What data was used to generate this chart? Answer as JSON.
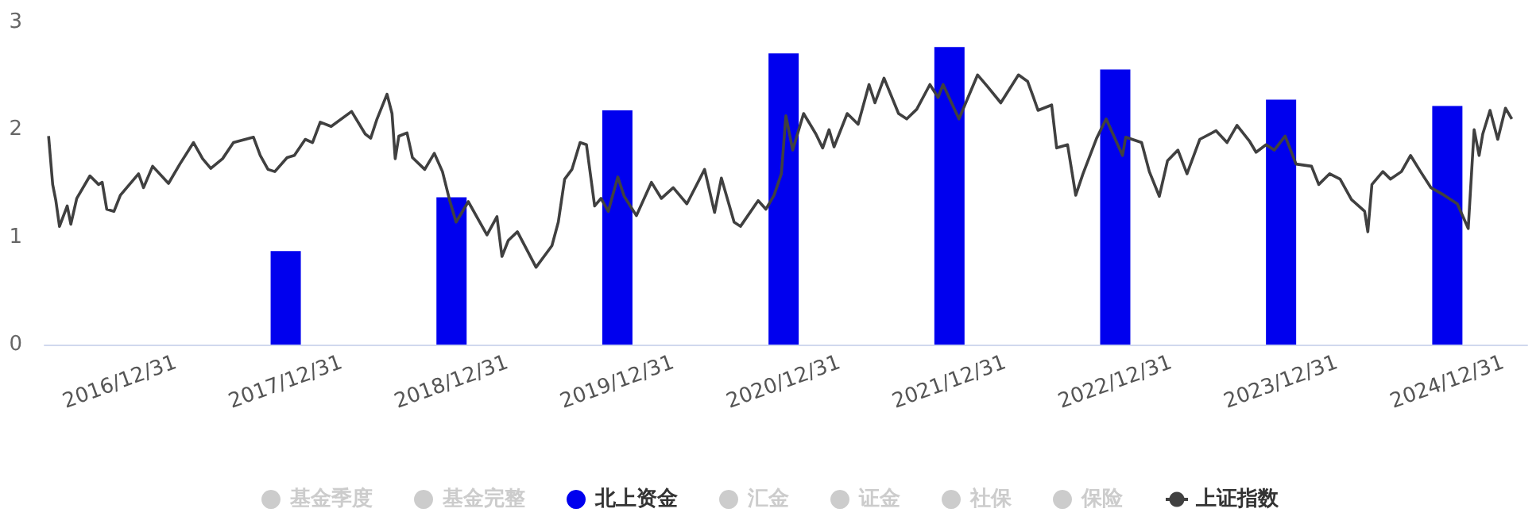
{
  "chart_data": {
    "type": "bar",
    "xlim": [
      "2016-07-18",
      "2025-06-25"
    ],
    "ylim": [
      0,
      3
    ],
    "yticks": [
      0,
      1,
      2,
      3
    ],
    "xticks": [
      {
        "value": "2016-12-31",
        "label": "2016/12/31"
      },
      {
        "value": "2017-12-31",
        "label": "2017/12/31"
      },
      {
        "value": "2018-12-31",
        "label": "2018/12/31"
      },
      {
        "value": "2019-12-31",
        "label": "2019/12/31"
      },
      {
        "value": "2020-12-31",
        "label": "2020/12/31"
      },
      {
        "value": "2021-12-31",
        "label": "2021/12/31"
      },
      {
        "value": "2022-12-31",
        "label": "2022/12/31"
      },
      {
        "value": "2023-12-31",
        "label": "2023/12/31"
      },
      {
        "value": "2024-12-31",
        "label": "2024/12/31"
      }
    ],
    "grid": false,
    "legend": "bottom",
    "series": [
      {
        "name": "基金季度",
        "color": "#cccccc"
      },
      {
        "name": "基金完整",
        "color": "#cccccc"
      },
      {
        "name": "北上资金",
        "color": "#0000ee",
        "x": [
          "2017-12-31",
          "2018-12-31",
          "2019-12-31",
          "2020-12-31",
          "2021-12-31",
          "2022-12-31",
          "2023-12-31",
          "2024-12-31"
        ],
        "values": [
          0.87,
          1.37,
          2.18,
          2.71,
          2.77,
          2.56,
          2.28,
          2.22
        ]
      },
      {
        "name": "汇金",
        "color": "#cccccc"
      },
      {
        "name": "证金",
        "color": "#cccccc"
      },
      {
        "name": "社保",
        "color": "#cccccc"
      },
      {
        "name": "保险",
        "color": "#cccccc"
      },
      {
        "name": "上证指数",
        "type": "line",
        "color": "#404040",
        "marker": "none",
        "x": [
          "2016-07-27",
          "2016-08-05",
          "2016-08-12",
          "2016-08-20",
          "2016-09-06",
          "2016-09-14",
          "2016-09-27",
          "2016-10-26",
          "2016-11-14",
          "2016-11-22",
          "2016-12-02",
          "2016-12-18",
          "2017-01-01",
          "2017-02-10",
          "2017-02-21",
          "2017-03-13",
          "2017-04-17",
          "2017-05-12",
          "2017-06-11",
          "2017-07-01",
          "2017-07-19",
          "2017-08-14",
          "2017-09-07",
          "2017-10-21",
          "2017-11-05",
          "2017-11-22",
          "2017-12-07",
          "2018-01-03",
          "2018-01-19",
          "2018-02-12",
          "2018-02-28",
          "2018-03-17",
          "2018-04-10",
          "2018-05-25",
          "2018-06-24",
          "2018-07-06",
          "2018-07-20",
          "2018-08-11",
          "2018-08-22",
          "2018-08-29",
          "2018-09-06",
          "2018-09-24",
          "2018-10-06",
          "2018-11-02",
          "2018-11-23",
          "2018-12-11",
          "2018-12-27",
          "2019-01-10",
          "2019-02-06",
          "2019-03-03",
          "2019-03-19",
          "2019-04-10",
          "2019-04-21",
          "2019-05-05",
          "2019-05-25",
          "2019-07-05",
          "2019-08-09",
          "2019-08-23",
          "2019-09-06",
          "2019-09-22",
          "2019-10-10",
          "2019-10-24",
          "2019-11-11",
          "2019-11-25",
          "2019-12-11",
          "2020-01-01",
          "2020-01-15",
          "2020-02-11",
          "2020-03-15",
          "2020-04-06",
          "2020-05-02",
          "2020-06-01",
          "2020-07-10",
          "2020-08-01",
          "2020-08-16",
          "2020-09-13",
          "2020-09-27",
          "2020-11-05",
          "2020-11-22",
          "2020-12-10",
          "2020-12-26",
          "2021-01-05",
          "2021-01-20",
          "2021-02-13",
          "2021-03-12",
          "2021-03-27",
          "2021-04-10",
          "2021-04-21",
          "2021-05-20",
          "2021-06-13",
          "2021-07-07",
          "2021-07-20",
          "2021-08-09",
          "2021-09-10",
          "2021-09-28",
          "2021-10-20",
          "2021-11-18",
          "2021-12-06",
          "2021-12-17",
          "2022-01-21",
          "2022-03-03",
          "2022-03-25",
          "2022-04-23",
          "2022-06-01",
          "2022-06-21",
          "2022-07-04",
          "2022-07-14",
          "2022-08-13",
          "2022-08-24",
          "2022-09-17",
          "2022-10-05",
          "2022-10-21",
          "2022-11-20",
          "2022-12-11",
          "2023-01-16",
          "2023-01-23",
          "2023-02-27",
          "2023-03-16",
          "2023-04-07",
          "2023-04-25",
          "2023-05-18",
          "2023-06-07",
          "2023-07-05",
          "2023-08-10",
          "2023-09-03",
          "2023-09-25",
          "2023-10-23",
          "2023-11-06",
          "2023-11-28",
          "2023-12-16",
          "2024-01-09",
          "2024-02-02",
          "2024-03-07",
          "2024-03-23",
          "2024-04-16",
          "2024-05-09",
          "2024-06-03",
          "2024-07-02",
          "2024-07-09",
          "2024-07-18",
          "2024-08-11",
          "2024-08-28",
          "2024-09-21",
          "2024-10-11",
          "2024-11-02",
          "2024-11-25",
          "2024-12-24",
          "2025-01-22",
          "2025-02-15",
          "2025-02-28",
          "2025-03-11",
          "2025-03-19",
          "2025-04-04",
          "2025-04-21",
          "2025-05-08",
          "2025-05-22"
        ],
        "values": [
          1.94,
          1.49,
          1.34,
          1.1,
          1.29,
          1.12,
          1.36,
          1.57,
          1.49,
          1.51,
          1.26,
          1.24,
          1.39,
          1.59,
          1.46,
          1.66,
          1.5,
          1.68,
          1.88,
          1.73,
          1.64,
          1.73,
          1.88,
          1.93,
          1.76,
          1.63,
          1.61,
          1.74,
          1.76,
          1.91,
          1.88,
          2.07,
          2.03,
          2.17,
          1.96,
          1.92,
          2.1,
          2.33,
          2.15,
          1.73,
          1.94,
          1.97,
          1.74,
          1.63,
          1.78,
          1.61,
          1.34,
          1.14,
          1.33,
          1.14,
          1.02,
          1.19,
          0.82,
          0.97,
          1.05,
          0.72,
          0.92,
          1.14,
          1.54,
          1.63,
          1.88,
          1.86,
          1.29,
          1.36,
          1.24,
          1.56,
          1.38,
          1.2,
          1.51,
          1.36,
          1.46,
          1.31,
          1.63,
          1.23,
          1.55,
          1.14,
          1.1,
          1.34,
          1.26,
          1.39,
          1.59,
          2.13,
          1.81,
          2.15,
          1.96,
          1.83,
          2.0,
          1.84,
          2.15,
          2.05,
          2.42,
          2.25,
          2.48,
          2.15,
          2.1,
          2.19,
          2.42,
          2.3,
          2.42,
          2.1,
          2.51,
          2.4,
          2.25,
          2.51,
          2.45,
          2.3,
          2.18,
          2.23,
          1.83,
          1.86,
          1.39,
          1.59,
          1.92,
          2.1,
          1.76,
          1.93,
          1.88,
          1.61,
          1.38,
          1.71,
          1.81,
          1.59,
          1.91,
          1.99,
          1.88,
          2.04,
          1.89,
          1.79,
          1.86,
          1.81,
          1.94,
          1.68,
          1.66,
          1.49,
          1.59,
          1.54,
          1.35,
          1.24,
          1.05,
          1.49,
          1.61,
          1.54,
          1.61,
          1.76,
          1.61,
          1.46,
          1.39,
          1.31,
          1.08,
          2.0,
          1.76,
          1.96,
          2.18,
          1.91,
          2.2,
          2.1
        ]
      }
    ]
  }
}
